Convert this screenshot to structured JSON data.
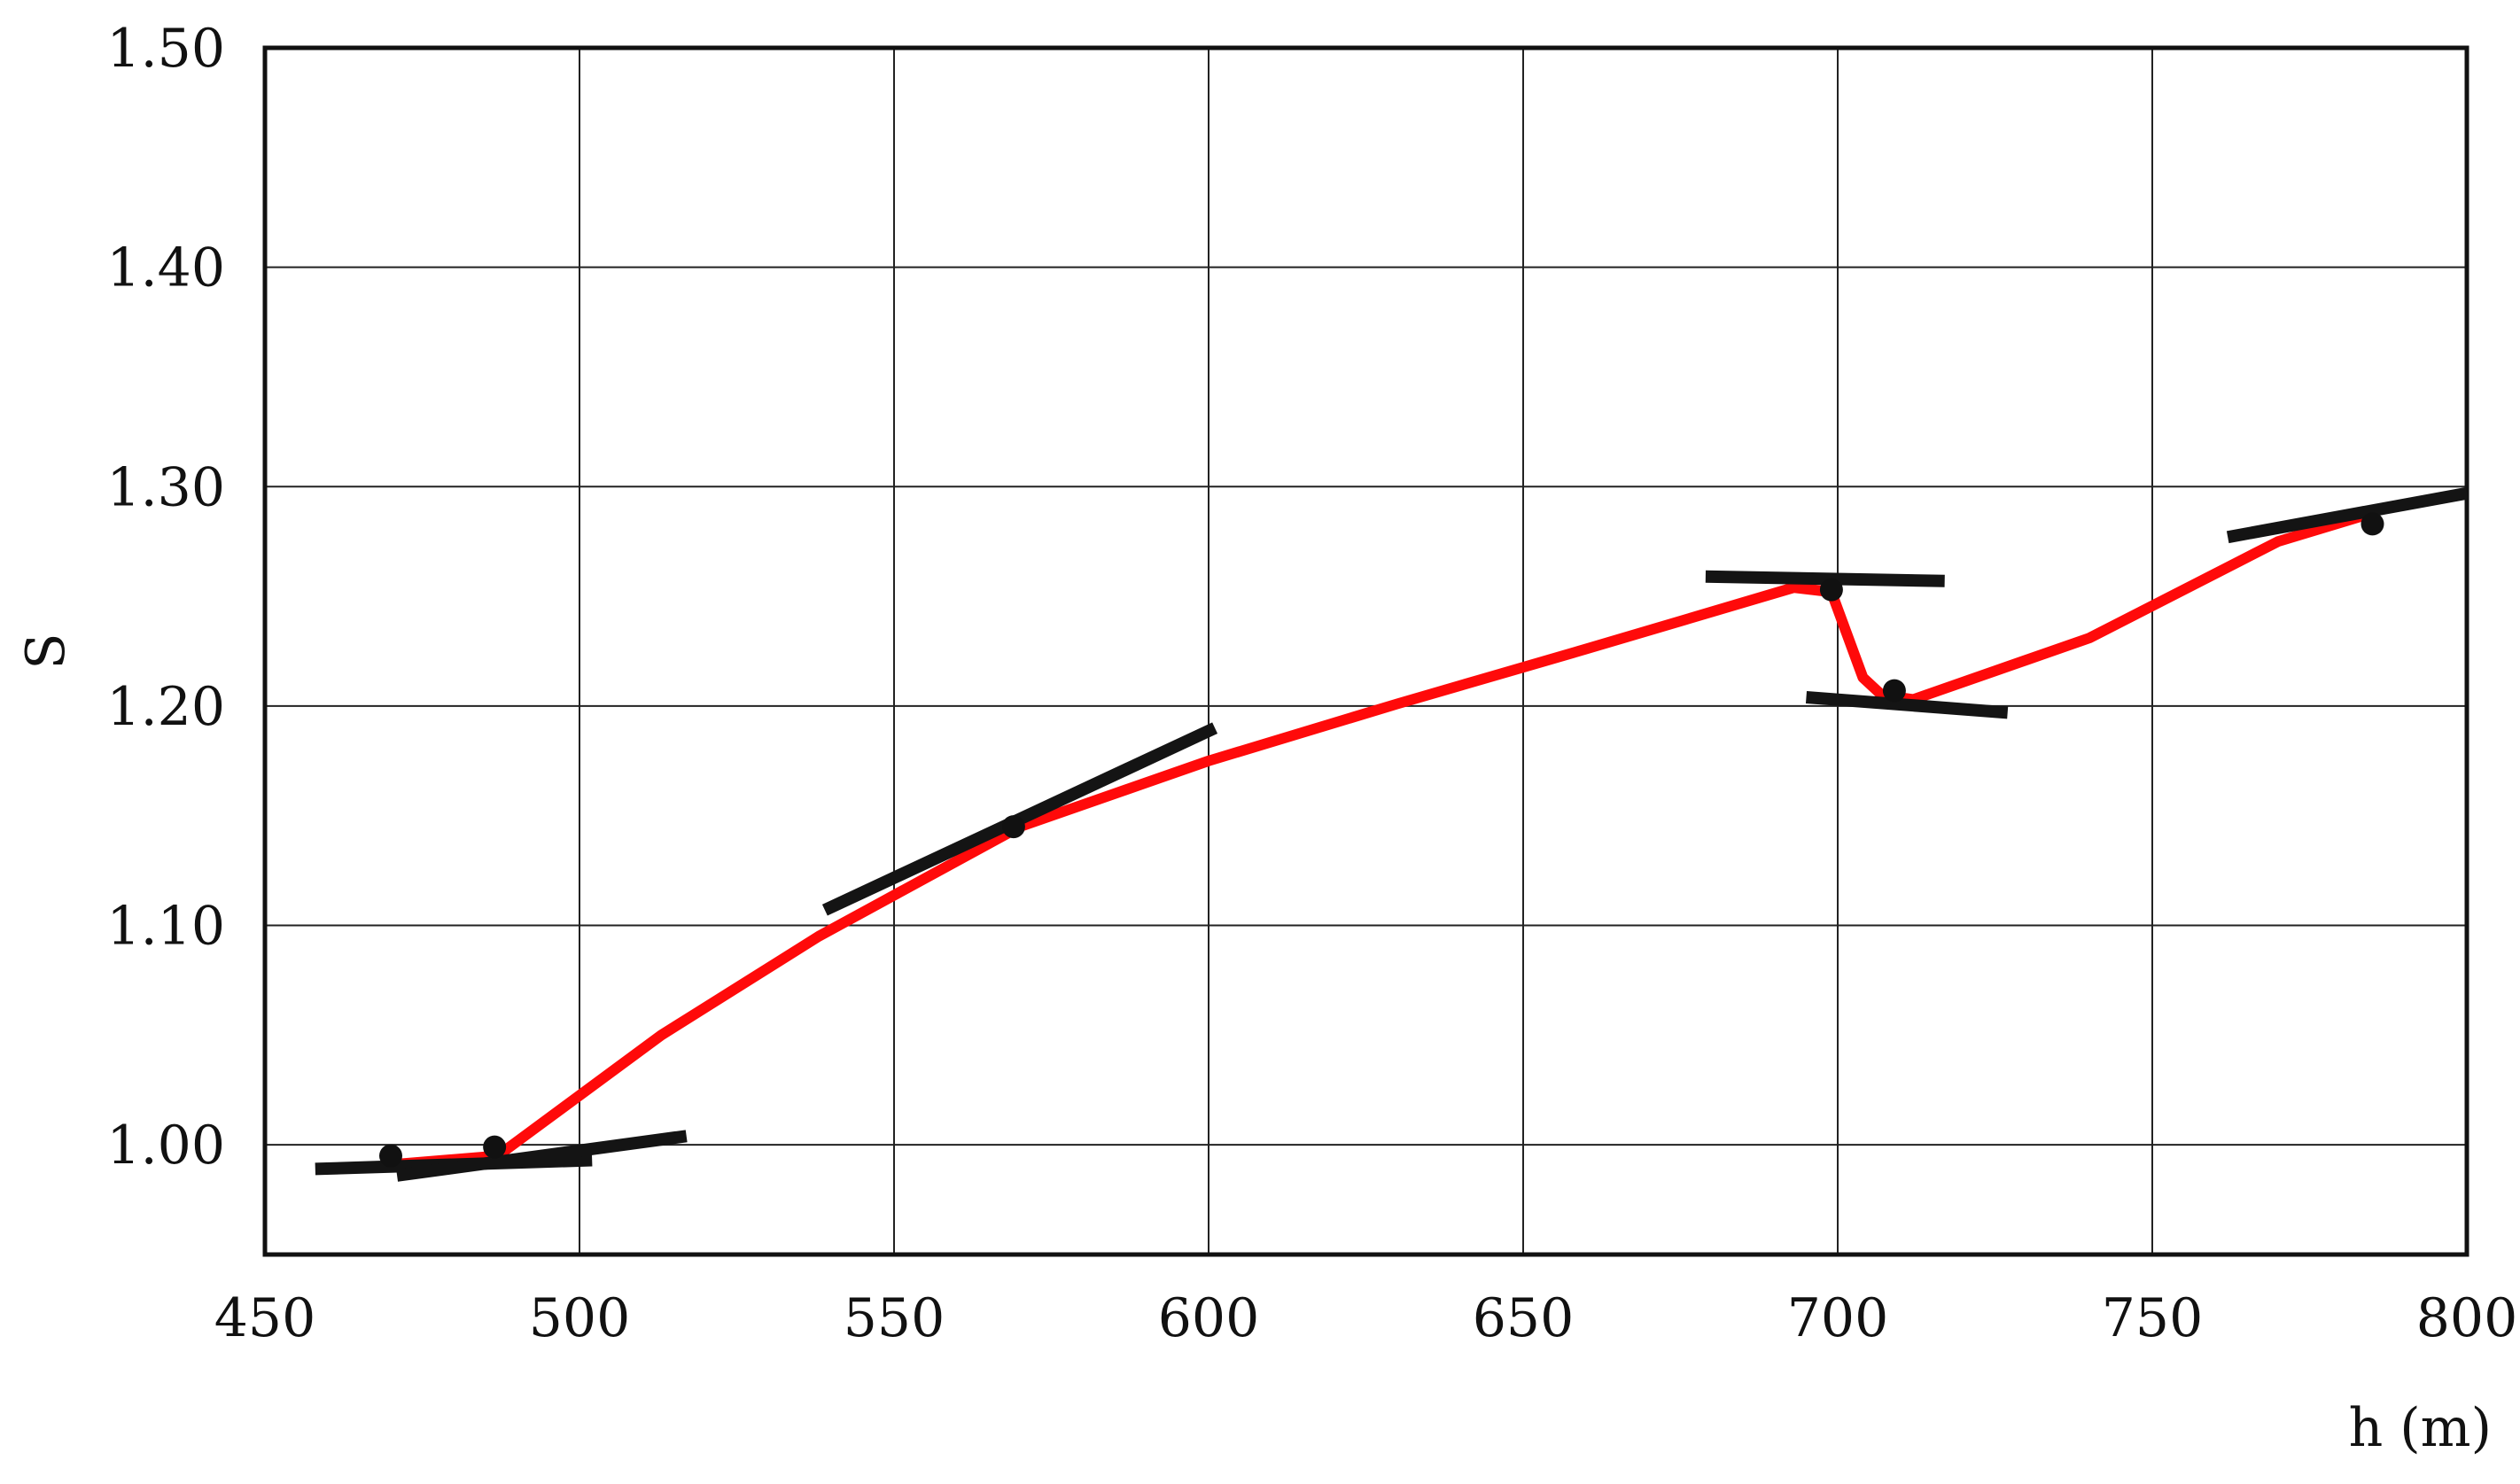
{
  "chart_data": {
    "type": "line",
    "title": "",
    "xlabel": "h (m)",
    "ylabel": "S",
    "xlim": [
      450,
      800
    ],
    "ylim": [
      0.95,
      1.5
    ],
    "x_ticks": [
      {
        "value": 450,
        "label": "450"
      },
      {
        "value": 500,
        "label": "500"
      },
      {
        "value": 550,
        "label": "550"
      },
      {
        "value": 600,
        "label": "600"
      },
      {
        "value": 650,
        "label": "650"
      },
      {
        "value": 700,
        "label": "700"
      },
      {
        "value": 750,
        "label": "750"
      },
      {
        "value": 800,
        "label": "800"
      }
    ],
    "y_ticks": [
      {
        "value": 1.0,
        "label": "1.00"
      },
      {
        "value": 1.1,
        "label": "1.10"
      },
      {
        "value": 1.2,
        "label": "1.20"
      },
      {
        "value": 1.3,
        "label": "1.30"
      },
      {
        "value": 1.4,
        "label": "1.40"
      },
      {
        "value": 1.5,
        "label": "1.50"
      }
    ],
    "grid": true,
    "colors": {
      "curve": "#ff0a0a",
      "tangent": "#141414",
      "point": "#111111"
    },
    "curve": {
      "x": [
        470,
        487,
        513,
        538,
        570,
        600,
        630,
        660,
        693,
        699,
        704,
        707,
        712,
        740,
        770,
        785
      ],
      "y": [
        0.991,
        0.995,
        1.05,
        1.095,
        1.145,
        1.175,
        1.201,
        1.226,
        1.254,
        1.252,
        1.213,
        1.205,
        1.203,
        1.231,
        1.275,
        1.288
      ]
    },
    "points": {
      "x": [
        470,
        486.5,
        569,
        699,
        709,
        785
      ],
      "y": [
        0.995,
        0.999,
        1.145,
        1.253,
        1.207,
        1.283
      ]
    },
    "tangent_segments": [
      {
        "x": [
          458,
          502
        ],
        "y": [
          0.989,
          0.993
        ]
      },
      {
        "x": [
          471,
          517
        ],
        "y": [
          0.986,
          1.004
        ]
      },
      {
        "x": [
          539,
          601
        ],
        "y": [
          1.107,
          1.19
        ]
      },
      {
        "x": [
          679,
          717
        ],
        "y": [
          1.259,
          1.257
        ]
      },
      {
        "x": [
          695,
          727
        ],
        "y": [
          1.204,
          1.197
        ]
      },
      {
        "x": [
          762,
          800
        ],
        "y": [
          1.277,
          1.297
        ]
      }
    ]
  }
}
